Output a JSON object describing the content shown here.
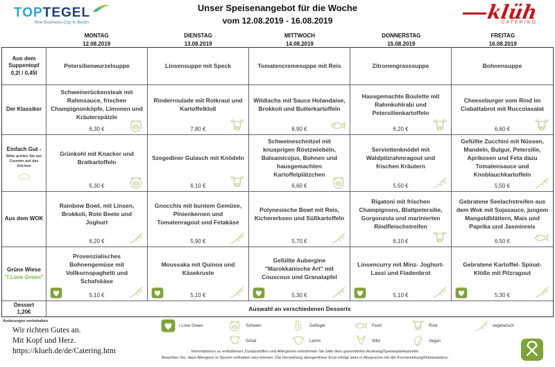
{
  "colors": {
    "brand_green": "#7FA23C",
    "icon_outline_green": "#C2CD96",
    "love_green_text": "#7FB043",
    "klueh_red": "#C3161C",
    "toptegel_blue": "#2BA3DC",
    "toptegel_navy": "#1D3F77"
  },
  "header": {
    "title1": "Unser Speisenangebot für die Woche",
    "title2": "vom 12.08.2019 - 16.08.2019",
    "toptegel_top": "TOP",
    "toptegel_tegel": "TEGEL",
    "toptegel_tagline": "Ihre Business-City in Berlin",
    "klueh_name": "klüh",
    "klueh_sub": "CATERING"
  },
  "days": [
    {
      "name": "MONTAG",
      "date": "12.08.2019"
    },
    {
      "name": "DIENSTAG",
      "date": "13.08.2019"
    },
    {
      "name": "MITTWOCH",
      "date": "14.08.2019"
    },
    {
      "name": "DONNERSTAG",
      "date": "15.08.2019"
    },
    {
      "name": "FREITAG",
      "date": "16.08.2019"
    }
  ],
  "rows": [
    {
      "label": "Aus dem Suppentopf",
      "sublabel": "0,2l / 0,45l",
      "cells": [
        {
          "text": "Petersilienwurzelsuppe",
          "price": "",
          "icon": "",
          "badge": ""
        },
        {
          "text": "Linsensuppe mit Speck",
          "price": "",
          "icon": "",
          "badge": ""
        },
        {
          "text": "Tomatencremesuppe mit Reis",
          "price": "",
          "icon": "",
          "badge": ""
        },
        {
          "text": "Zitronengrasssuppe",
          "price": "",
          "icon": "",
          "badge": ""
        },
        {
          "text": "Bohnensuppe",
          "price": "",
          "icon": "",
          "badge": ""
        }
      ]
    },
    {
      "label": "Der Klassiker",
      "sublabel": "",
      "cells": [
        {
          "text": "Schweinerückensteak mit Rahmsauce, frischen Champignonköpfe, Limonen und Kräuterspätzle",
          "price": "6,30 €",
          "icon": "pig",
          "badge": ""
        },
        {
          "text": "Rinderroulade mit Rotkraut und Kartoffelkloß",
          "price": "7,80 €",
          "icon": "cow",
          "badge": ""
        },
        {
          "text": "Wildlachs mit Sauce Holandaise, Brokkoli und Butterkartoffeln",
          "price": "6,90 €",
          "icon": "fish",
          "badge": ""
        },
        {
          "text": "Hausgemachte Boulette mit Rahmkohlrabi und Petersilienkartoffeln",
          "price": "6,20 €",
          "icon": "cow",
          "badge": ""
        },
        {
          "text": "Cheeseburger vom Rind im Ciabattabrot mit Ruccolasalat",
          "price": "6,60 €",
          "icon": "cow",
          "badge": ""
        }
      ]
    },
    {
      "label": "Einfach Gut -",
      "sublabel": "",
      "hint": "Bitte achten Sie am Counter auf das Zeichen",
      "cells": [
        {
          "text": "Grünkohl mit Knacker und Bratkartoffeln",
          "price": "5,30 €",
          "icon": "pig",
          "badge": ""
        },
        {
          "text": "Szegediner Gulasch mit Knödeln",
          "price": "6,10 €",
          "icon": "cow",
          "badge": ""
        },
        {
          "text": "Schweineschnitzel mit knusprigen Röstzwiebeln, Balsamicojus, Bohnen und hausgemachten Kartoffelplätzchen",
          "price": "6,60 €",
          "icon": "pig",
          "badge": ""
        },
        {
          "text": "Serviettenknödel mit Waldpilzrahmragout und frischen Kräutern",
          "price": "5,50 €",
          "icon": "veg",
          "badge": ""
        },
        {
          "text": "Gefüllte Zucchini mit Nüssen, Mandeln, Bulgur, Petersilie, Aprikosen und Feta dazu Tomatensauce und Knoblauchkartoffeln",
          "price": "5,50 €",
          "icon": "veg",
          "badge": ""
        }
      ]
    },
    {
      "label": "Aus dem WOK",
      "sublabel": "",
      "cells": [
        {
          "text": "Rainbow Bowl, mit Linsen, Brokkoli, Rote Beete und Joghurt",
          "price": "6,20 €",
          "icon": "veg",
          "badge": ""
        },
        {
          "text": "Gnocchis mit buntem Gemüse, Pinienkernen und Tomatenragout und Fetakäse",
          "price": "5,90 €",
          "icon": "veg",
          "badge": ""
        },
        {
          "text": "Polynesische Bowl mit Reis, Kichererbsen und Süßkartoffeln",
          "price": "5,70 €",
          "icon": "veg",
          "badge": ""
        },
        {
          "text": "Rigatoni mit frischen Champignons, Blattpetersilie, Gorgonzola und marinierten Rindfleischstreifen",
          "price": "6,10 €",
          "icon": "cow",
          "badge": ""
        },
        {
          "text": "Gebratene Seelachstreifen aus dem Wok mit Sojasauce, jungem Mangoldblättern, Mais und Paprika und Jasminreis",
          "price": "6,50 €",
          "icon": "fish",
          "badge": ""
        }
      ]
    },
    {
      "label": "Grüne Wiese",
      "sublabel": "\"I Love Green\"",
      "cells": [
        {
          "text": "Provenzialisches Bohnengemüse mit Vollkornspaghetti und Schafskäse",
          "price": "5,10 €",
          "icon": "veg",
          "badge": "heart"
        },
        {
          "text": "Moussaka mit Quinoa und Käsekruste",
          "price": "5,10 €",
          "icon": "veg",
          "badge": "heart"
        },
        {
          "text": "Gefüllte Aubergine \"Marokkanische Art\" mit Couscous und Granatapfel",
          "price": "5,30 €",
          "icon": "veg",
          "badge": "heart"
        },
        {
          "text": "Linsencurry mit Minz- Joghurt-Lassi und Fladenbrot",
          "price": "5,10 €",
          "icon": "veg",
          "badge": "heart"
        },
        {
          "text": "Gebratene Kartoffel- Spinat-Klöße mit Pilzragout",
          "price": "5,30 €",
          "icon": "veg",
          "badge": "heart"
        }
      ]
    }
  ],
  "dessert": {
    "label": "Dessert",
    "price": "1,20€",
    "text": "Auswahl an verschiedenen Desserts"
  },
  "legend": {
    "items_row1": [
      {
        "icon": "heart",
        "label": "I Love Green"
      },
      {
        "icon": "pig",
        "label": "Schwein"
      },
      {
        "icon": "chicken",
        "label": "Geflügel"
      },
      {
        "icon": "fish",
        "label": "Fisch"
      },
      {
        "icon": "cow",
        "label": "Rind"
      },
      {
        "icon": "veg",
        "label": "vegetarisch"
      }
    ],
    "items_row2": [
      {
        "icon": "",
        "label": ""
      },
      {
        "icon": "sheep",
        "label": "Schaf"
      },
      {
        "icon": "lamb",
        "label": "Lamm"
      },
      {
        "icon": "deer",
        "label": "Wild"
      },
      {
        "icon": "vegan",
        "label": "Vegan"
      },
      {
        "icon": "",
        "label": ""
      }
    ]
  },
  "footer": {
    "changes_note": "Änderungen vorbehalten",
    "tagline": [
      "Wir richten Gutes an.",
      "Mit Kopf und Herz.",
      "https://klueh.de/de/Catering.htm"
    ],
    "info1": "Informationen zu enthaltenen Zusatzstoffen und Allergenen entnehmen Sie bitte dem gesonderten Aushang/Speiseplankassette.",
    "info2": "Beachten Sie, dass Allergene in Spuren enthalten sein können. Die Herstellung allergenfreier Kost erfolgt stets in Absprache mit der Küchenleitung/Diätassistenz."
  }
}
